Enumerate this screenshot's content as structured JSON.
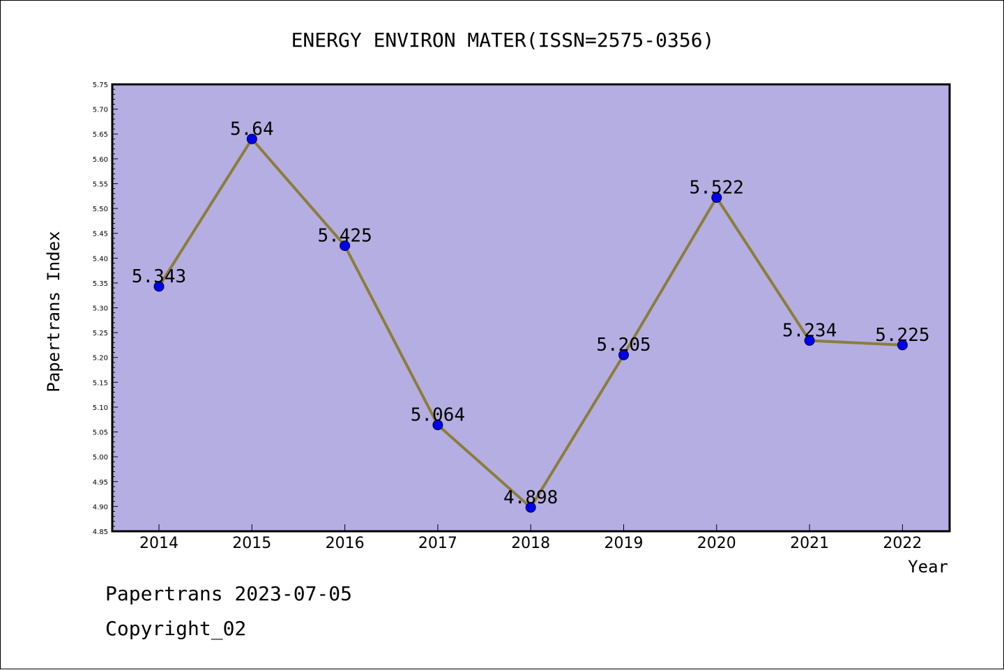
{
  "chart_data": {
    "type": "line",
    "title": "ENERGY ENVIRON MATER(ISSN=2575-0356)",
    "xlabel": "Year",
    "ylabel": "Papertrans Index",
    "categories": [
      "2014",
      "2015",
      "2016",
      "2017",
      "2018",
      "2019",
      "2020",
      "2021",
      "2022"
    ],
    "series": [
      {
        "values": [
          5.343,
          5.64,
          5.425,
          5.064,
          4.898,
          5.205,
          5.522,
          5.234,
          5.225
        ],
        "labels": [
          "5.343",
          "5.64",
          "5.425",
          "5.064",
          "4.898",
          "5.205",
          "5.522",
          "5.234",
          "5.225"
        ]
      }
    ],
    "ylim": [
      4.85,
      5.75
    ],
    "yticks": [
      "4.85",
      "4.90",
      "4.95",
      "5.00",
      "5.05",
      "5.10",
      "5.15",
      "5.20",
      "5.25",
      "5.30",
      "5.35",
      "5.40",
      "5.45",
      "5.50",
      "5.55",
      "5.60",
      "5.65",
      "5.70",
      "5.75"
    ],
    "grid": false,
    "colors": {
      "plot_background": "#b5aee2",
      "line": "#8b7d3a",
      "marker": "#0000ee"
    }
  },
  "footer": {
    "line1": "Papertrans 2023-07-05",
    "line2": "Copyright_02"
  }
}
